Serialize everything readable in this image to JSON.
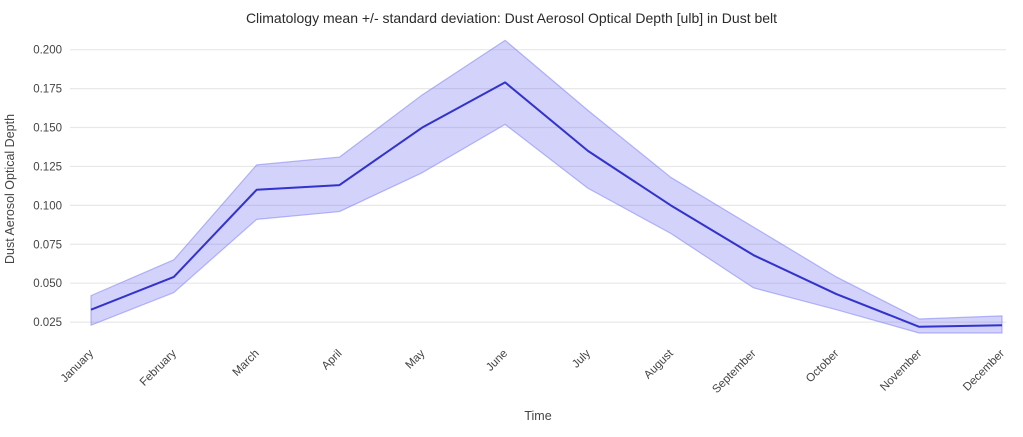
{
  "chart_data": {
    "type": "line",
    "title": "Climatology mean +/- standard deviation: Dust Aerosol Optical Depth [ulb] in Dust belt",
    "xlabel": "Time",
    "ylabel": "Dust Aerosol Optical Depth",
    "categories": [
      "January",
      "February",
      "March",
      "April",
      "May",
      "June",
      "July",
      "August",
      "September",
      "October",
      "November",
      "December"
    ],
    "series": [
      {
        "name": "mean",
        "values": [
          0.033,
          0.054,
          0.11,
          0.113,
          0.15,
          0.179,
          0.135,
          0.1,
          0.068,
          0.043,
          0.022,
          0.023
        ]
      },
      {
        "name": "mean+std",
        "values": [
          0.042,
          0.065,
          0.126,
          0.131,
          0.171,
          0.206,
          0.161,
          0.118,
          0.086,
          0.054,
          0.027,
          0.029
        ]
      },
      {
        "name": "mean-std",
        "values": [
          0.023,
          0.044,
          0.091,
          0.096,
          0.121,
          0.152,
          0.111,
          0.082,
          0.047,
          0.033,
          0.018,
          0.018
        ]
      }
    ],
    "band": {
      "upper_series": "mean+std",
      "lower_series": "mean-std",
      "style": "shaded"
    },
    "yticks": [
      0.025,
      0.05,
      0.075,
      0.1,
      0.125,
      0.15,
      0.175,
      0.2
    ],
    "ylim": [
      0.0135,
      0.2075
    ],
    "grid": "horizontal-only",
    "legend": "none",
    "tick_format": "0.000",
    "xtick_angle_deg": -45,
    "colors": {
      "line": "#3232cd",
      "band_fill": "rgba(95,95,238,0.28)",
      "band_edge": "rgba(130,130,245,0.55)",
      "grid": "#e8e8e8",
      "title_text": "#2a2a2a",
      "tick_text": "#444444",
      "axis_title_text": "#444444",
      "background": "#ffffff"
    }
  }
}
